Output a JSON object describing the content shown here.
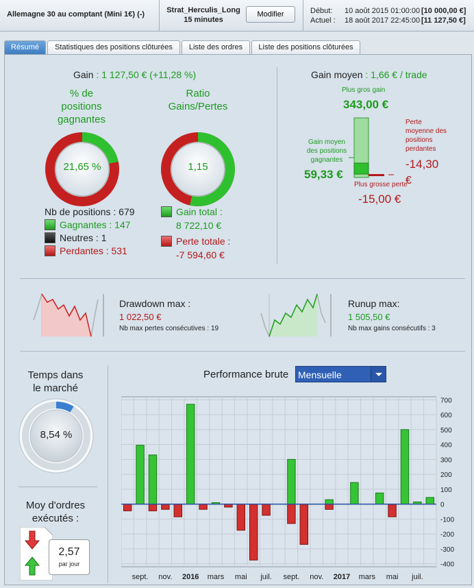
{
  "header": {
    "instrument": "Allemagne 30 au comptant (Mini 1€) (-)",
    "strategy": "Strat_Herculis_Long",
    "timeframe": "15 minutes",
    "modify_label": "Modifier",
    "start_label": "Début:",
    "start_date": "10 août 2015 01:00:00",
    "start_value": "[10 000,00 €]",
    "current_label": "Actuel :",
    "current_date": "18 août 2017 22:45:00",
    "current_value": "[11 127,50 €]"
  },
  "tabs": [
    "Résumé",
    "Statistiques des positions clôturées",
    "Liste des ordres",
    "Liste des positions clôturées"
  ],
  "gain": {
    "label": "Gain",
    "value": ": 1 127,50 € (+11,28 %)",
    "win_pct_title_1": "% de",
    "win_pct_title_2": "positions",
    "win_pct_title_3": "gagnantes",
    "win_pct_value": "21,65 %",
    "win_pct_fraction": 0.2165,
    "ratio_title_1": "Ratio",
    "ratio_title_2": "Gains/Pertes",
    "ratio_value": "1,15",
    "ratio_green_fraction": 0.5345,
    "nb_positions": "Nb de positions : 679",
    "winners": "Gagnantes : 147",
    "neutral": "Neutres : 1",
    "losers": "Perdantes : 531",
    "total_gain_label": "Gain total :",
    "total_gain_value": "8 722,10 €",
    "total_loss_label": "Perte totale :",
    "total_loss_value": "-7 594,60 €"
  },
  "avg_gain": {
    "label": "Gain moyen",
    "value": ": 1,66 € / trade",
    "biggest_gain_label": "Plus gros gain",
    "biggest_gain_value": "343,00 €",
    "avg_win_label_1": "Gain moyen",
    "avg_win_label_2": "des positions",
    "avg_win_label_3": "gagnantes",
    "avg_win_value": "59,33 €",
    "avg_loss_label_1": "Perte",
    "avg_loss_label_2": "moyenne des",
    "avg_loss_label_3": "positions",
    "avg_loss_label_4": "perdantes",
    "avg_loss_value": "-14,30",
    "avg_loss_unit": "€",
    "biggest_loss_label": "Plus grosse perte",
    "biggest_loss_value": "-15,00 €"
  },
  "drawdown": {
    "label": "Drawdown max :",
    "value": "1 022,50 €",
    "consecutive": "Nb max pertes consécutives : 19"
  },
  "runup": {
    "label": "Runup max:",
    "value": "1 505,50 €",
    "consecutive": "Nb max gains consécutifs : 3"
  },
  "time_in_market": {
    "title_1": "Temps dans",
    "title_2": "le marché",
    "value": "8,54 %",
    "fraction": 0.0854
  },
  "orders": {
    "title_1": "Moy d'ordres",
    "title_2": "exécutés :",
    "value": "2,57",
    "unit": "par jour"
  },
  "performance": {
    "label": "Performance brute",
    "period": "Mensuelle"
  },
  "colors": {
    "green": "#1d9b1d",
    "red": "#b41818",
    "accent": "#2f60b6"
  },
  "chart_data": {
    "type": "bar",
    "title": "Performance brute",
    "period": "Mensuelle",
    "categories": [
      "2015-08",
      "2015-09",
      "2015-10",
      "2015-11",
      "2015-12",
      "2016-01",
      "2016-02",
      "2016-03",
      "2016-04",
      "2016-05",
      "2016-06",
      "2016-07",
      "2016-08",
      "2016-09",
      "2016-10",
      "2016-11",
      "2016-12",
      "2017-01",
      "2017-02",
      "2017-03",
      "2017-04",
      "2017-05",
      "2017-06",
      "2017-07",
      "2017-08"
    ],
    "series": [
      {
        "values": [
          0,
          395,
          330,
          0,
          0,
          670,
          0,
          10,
          0,
          0,
          0,
          0,
          0,
          300,
          0,
          0,
          30,
          0,
          145,
          0,
          75,
          0,
          500,
          15,
          45
        ]
      },
      {
        "values": [
          -45,
          0,
          -45,
          -35,
          -85,
          0,
          -35,
          0,
          -20,
          -175,
          -375,
          -75,
          0,
          -130,
          -270,
          0,
          -35,
          0,
          0,
          0,
          0,
          -85,
          0,
          0,
          0
        ]
      }
    ],
    "x_tick_labels": [
      {
        "label": "sept.",
        "index": 1,
        "bold": false
      },
      {
        "label": "nov.",
        "index": 3,
        "bold": false
      },
      {
        "label": "2016",
        "index": 5,
        "bold": true
      },
      {
        "label": "mars",
        "index": 7,
        "bold": false
      },
      {
        "label": "mai",
        "index": 9,
        "bold": false
      },
      {
        "label": "juil.",
        "index": 11,
        "bold": false
      },
      {
        "label": "sept.",
        "index": 13,
        "bold": false
      },
      {
        "label": "nov.",
        "index": 15,
        "bold": false
      },
      {
        "label": "2017",
        "index": 17,
        "bold": true
      },
      {
        "label": "mars",
        "index": 19,
        "bold": false
      },
      {
        "label": "mai",
        "index": 21,
        "bold": false
      },
      {
        "label": "juil.",
        "index": 23,
        "bold": false
      }
    ],
    "y_ticks": [
      700,
      600,
      500,
      400,
      300,
      200,
      100,
      0,
      -100,
      -200,
      -300,
      -400
    ],
    "ylim": [
      -420,
      720
    ],
    "grid": true
  }
}
